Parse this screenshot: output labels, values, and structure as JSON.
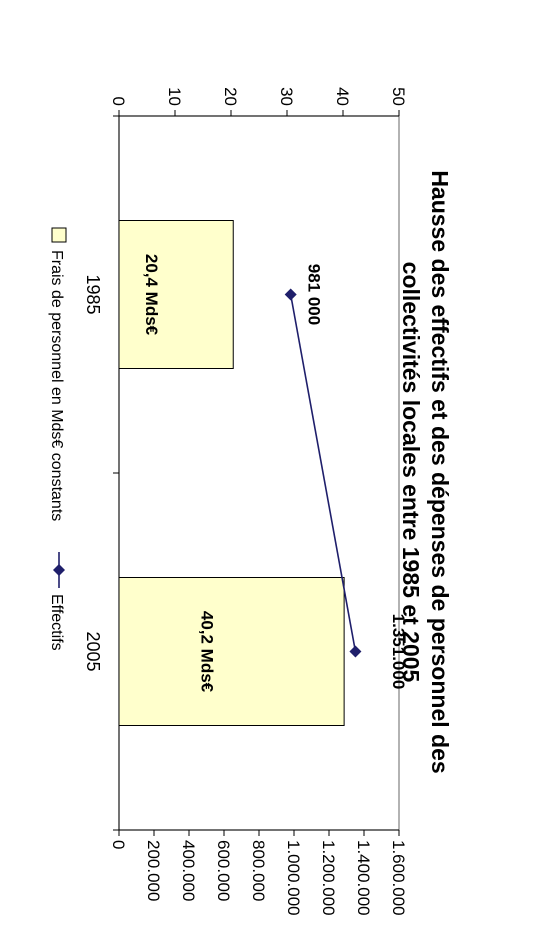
{
  "chart_data": {
    "type": "bar",
    "title_line1": "Hausse des effectifs et des dépenses de personnel des",
    "title_line2": "collectivités locales entre 1985 et 2005",
    "categories": [
      "1985",
      "2005"
    ],
    "series": [
      {
        "name": "Frais de personnel en Mds€ constants",
        "type": "bar",
        "axis": "primary",
        "values": [
          20.4,
          40.2
        ],
        "labels": [
          "20,4 Mds€",
          "40,2 Mds€"
        ],
        "color": "#FFFFCC"
      },
      {
        "name": "Effectifs",
        "type": "line",
        "axis": "secondary",
        "values": [
          981000,
          1351000
        ],
        "labels": [
          "981 000",
          "1.351.000"
        ],
        "color": "#1F1F6B"
      }
    ],
    "primary_axis": {
      "range": [
        0,
        50
      ],
      "ticks": [
        "0",
        "10",
        "20",
        "30",
        "40",
        "50"
      ]
    },
    "secondary_axis": {
      "range": [
        0,
        1600000
      ],
      "ticks": [
        "0",
        "200.000",
        "400.000",
        "600.000",
        "800.000",
        "1.000.000",
        "1.200.000",
        "1.400.000",
        "1.600.000"
      ]
    },
    "legend_position": "bottom",
    "grid": false
  }
}
